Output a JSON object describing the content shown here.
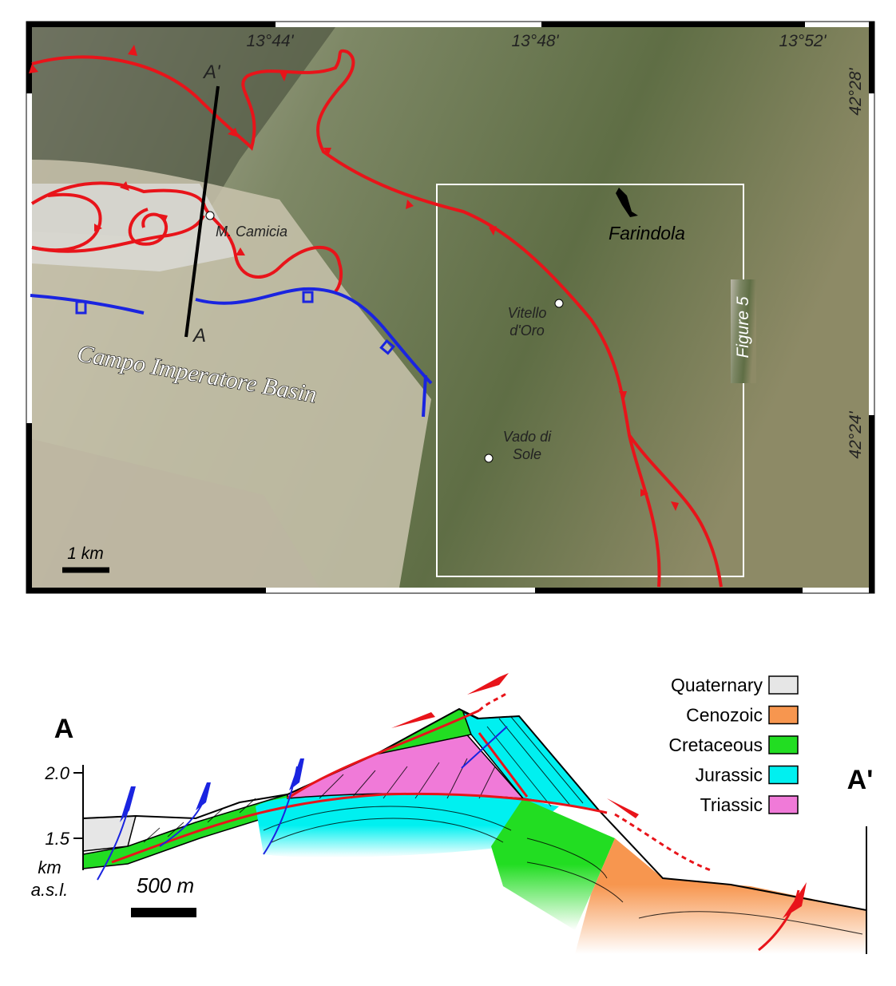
{
  "map": {
    "longitude_labels": [
      "13°44'",
      "13°48'",
      "13°52'"
    ],
    "latitude_labels": [
      "42°28'",
      "42°24'"
    ],
    "section_end_top": "A'",
    "section_end_bottom": "A",
    "places": {
      "camicia": "M. Camicia",
      "farindola": "Farindola",
      "vitello": [
        "Vitello",
        "d'Oro"
      ],
      "vado": [
        "Vado di",
        "Sole"
      ]
    },
    "basin": "Campo Imperatore Basin",
    "inset": "Figure 5",
    "scale": "1 km"
  },
  "section": {
    "left_end": "A",
    "right_end": "A'",
    "elevation_ticks": [
      "2.0",
      "1.5"
    ],
    "elevation_unit": [
      "km",
      "a.s.l."
    ],
    "scale": "500 m",
    "legend": [
      {
        "name": "Quaternary",
        "color": "#e6e6e6"
      },
      {
        "name": "Cenozoic",
        "color": "#f7964f"
      },
      {
        "name": "Cretaceous",
        "color": "#22dd22"
      },
      {
        "name": "Jurassic",
        "color": "#00f0f0"
      },
      {
        "name": "Triassic",
        "color": "#f07ad8"
      }
    ]
  }
}
